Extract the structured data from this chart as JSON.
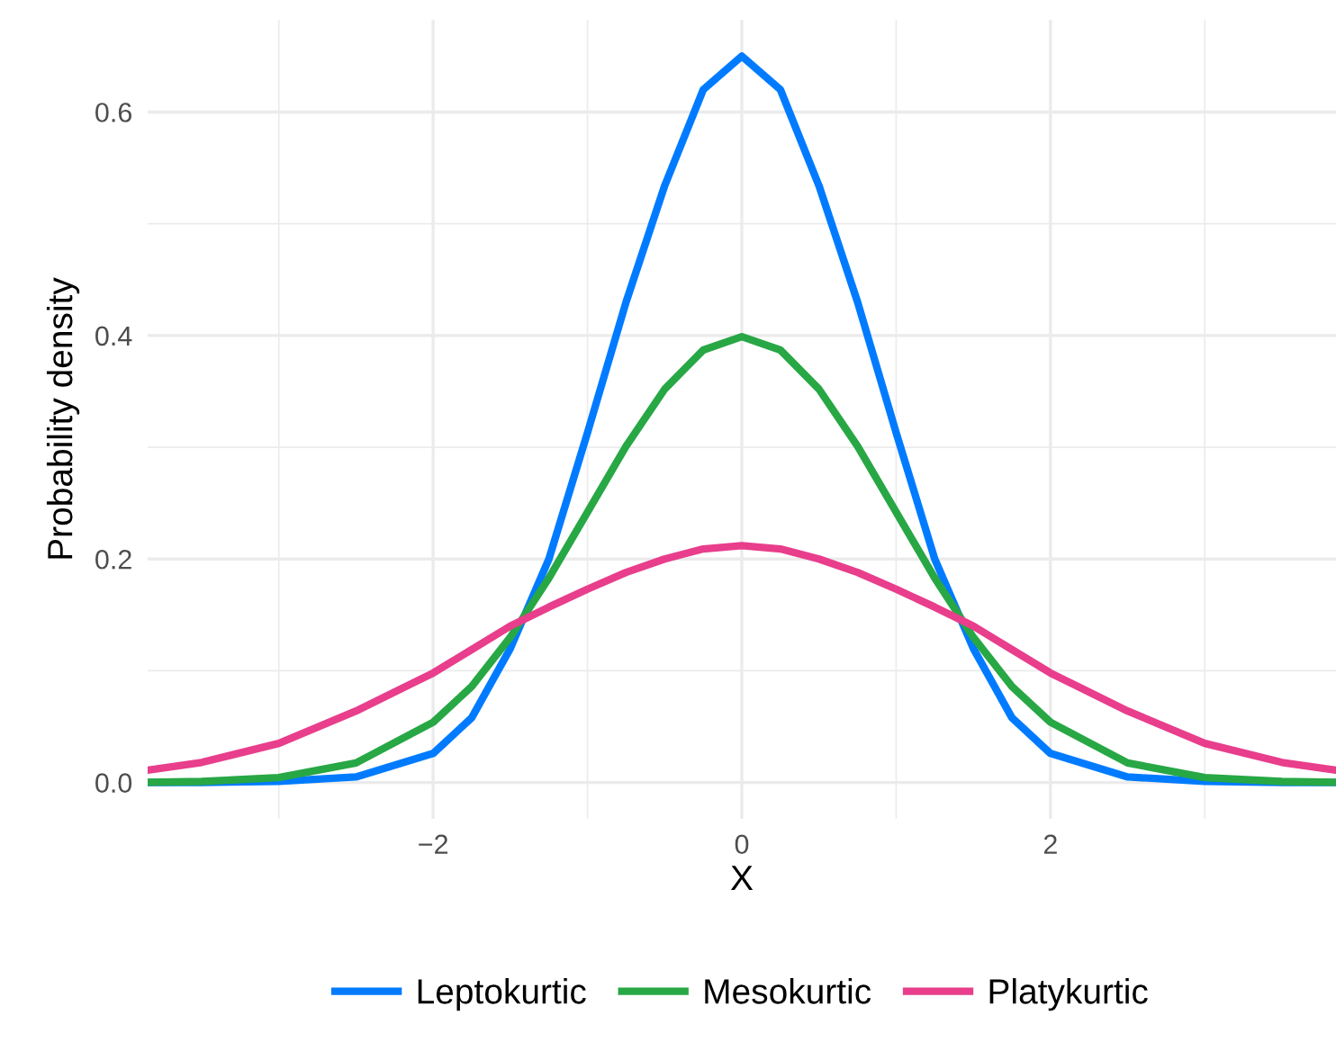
{
  "chart_data": {
    "type": "line",
    "xlabel": "X",
    "ylabel": "Probability density",
    "x": [
      -3.85,
      -3.5,
      -3,
      -2.5,
      -2,
      -1.75,
      -1.5,
      -1.25,
      -1,
      -0.75,
      -0.5,
      -0.25,
      0,
      0.25,
      0.5,
      0.75,
      1,
      1.25,
      1.5,
      1.75,
      2,
      2.5,
      3,
      3.5,
      3.85
    ],
    "series": [
      {
        "name": "Leptokurtic",
        "color": "#007bff",
        "values": [
          0.0,
          0.0,
          0.001,
          0.005,
          0.026,
          0.058,
          0.12,
          0.2,
          0.313,
          0.43,
          0.534,
          0.62,
          0.65,
          0.62,
          0.534,
          0.43,
          0.313,
          0.2,
          0.12,
          0.058,
          0.026,
          0.005,
          0.001,
          0.0,
          0.0
        ]
      },
      {
        "name": "Mesokurtic",
        "color": "#28a745",
        "values": [
          0.0002,
          0.0009,
          0.0044,
          0.0175,
          0.054,
          0.086,
          0.13,
          0.183,
          0.242,
          0.301,
          0.352,
          0.387,
          0.399,
          0.387,
          0.352,
          0.301,
          0.242,
          0.183,
          0.13,
          0.086,
          0.054,
          0.0175,
          0.0044,
          0.0009,
          0.0002
        ]
      },
      {
        "name": "Platykurtic",
        "color": "#e83e8c",
        "values": [
          0.011,
          0.018,
          0.035,
          0.064,
          0.098,
          0.119,
          0.14,
          0.157,
          0.173,
          0.188,
          0.2,
          0.209,
          0.212,
          0.209,
          0.2,
          0.188,
          0.173,
          0.157,
          0.14,
          0.119,
          0.098,
          0.064,
          0.035,
          0.018,
          0.011
        ]
      }
    ],
    "xlim": [
      -3.85,
      3.85
    ],
    "ylim": [
      -0.0325,
      0.6825
    ],
    "xticks": [
      {
        "value": -3,
        "label": null
      },
      {
        "value": -2,
        "label": "−2"
      },
      {
        "value": -1,
        "label": null
      },
      0,
      {
        "value": 1,
        "label": null
      },
      2,
      {
        "value": 3,
        "label": null
      }
    ],
    "yticks": [
      {
        "value": 0,
        "label": "0.0"
      },
      {
        "value": 0.1,
        "label": null
      },
      0.2,
      {
        "value": 0.3,
        "label": null
      },
      0.4,
      {
        "value": 0.5,
        "label": null
      },
      0.6
    ],
    "grid": true,
    "legend": "bottom",
    "line_style": "solid",
    "marker": "none"
  }
}
